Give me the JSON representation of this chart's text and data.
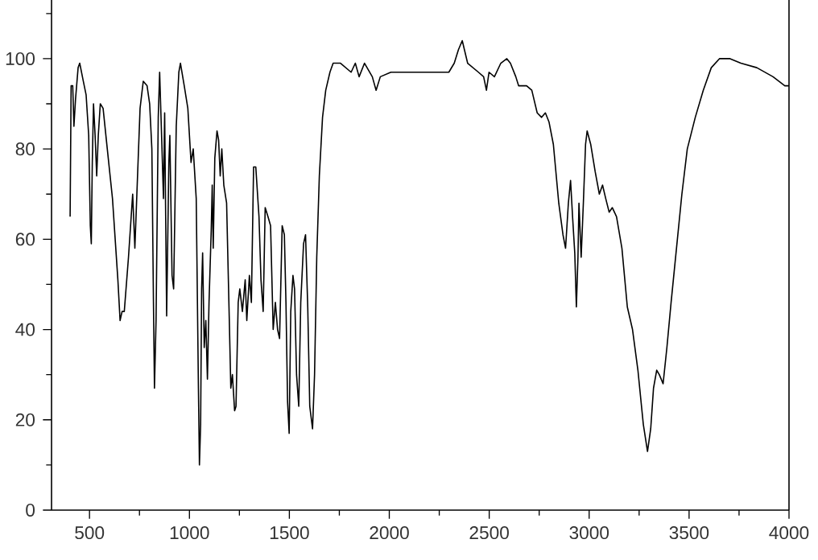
{
  "chart_data": {
    "type": "line",
    "x": [
      403,
      408,
      416,
      422,
      430,
      443,
      451,
      469,
      483,
      496,
      504,
      509,
      514,
      520,
      528,
      536,
      544,
      554,
      568,
      589,
      615,
      642,
      653,
      663,
      674,
      695,
      716,
      727,
      737,
      753,
      769,
      788,
      801,
      812,
      820,
      825,
      833,
      844,
      851,
      862,
      870,
      876,
      886,
      897,
      902,
      913,
      921,
      934,
      947,
      955,
      974,
      992,
      1008,
      1019,
      1034,
      1045,
      1050,
      1056,
      1061,
      1066,
      1074,
      1082,
      1090,
      1098,
      1109,
      1114,
      1119,
      1127,
      1138,
      1146,
      1154,
      1162,
      1172,
      1186,
      1199,
      1207,
      1215,
      1226,
      1233,
      1244,
      1252,
      1265,
      1279,
      1287,
      1300,
      1310,
      1321,
      1332,
      1348,
      1358,
      1369,
      1379,
      1393,
      1406,
      1419,
      1430,
      1441,
      1451,
      1464,
      1475,
      1483,
      1491,
      1499,
      1507,
      1518,
      1526,
      1536,
      1547,
      1557,
      1571,
      1581,
      1592,
      1602,
      1616,
      1626,
      1637,
      1650,
      1666,
      1682,
      1703,
      1719,
      1756,
      1809,
      1830,
      1849,
      1876,
      1915,
      1934,
      1955,
      2008,
      2075,
      2151,
      2258,
      2298,
      2325,
      2346,
      2365,
      2392,
      2446,
      2472,
      2486,
      2499,
      2526,
      2558,
      2588,
      2606,
      2633,
      2647,
      2687,
      2713,
      2740,
      2762,
      2781,
      2799,
      2821,
      2848,
      2869,
      2882,
      2896,
      2907,
      2917,
      2928,
      2936,
      2944,
      2949,
      2960,
      2971,
      2982,
      2990,
      3008,
      3030,
      3051,
      3067,
      3083,
      3100,
      3116,
      3137,
      3164,
      3191,
      3217,
      3244,
      3271,
      3292,
      3308,
      3322,
      3338,
      3351,
      3370,
      3389,
      3410,
      3437,
      3464,
      3491,
      3531,
      3571,
      3611,
      3652,
      3705,
      3759,
      3839,
      3920,
      3979,
      4000
    ],
    "series": [
      {
        "color": "#000000",
        "values": [
          65,
          94,
          94,
          85,
          91,
          98,
          99,
          95,
          92,
          83,
          63,
          59,
          77,
          90,
          83,
          74,
          83,
          90,
          89,
          80,
          69,
          51,
          42,
          44,
          44,
          56,
          70,
          58,
          70,
          89,
          95,
          94,
          90,
          80,
          46,
          27,
          42,
          87,
          97,
          81,
          69,
          88,
          43,
          77,
          83,
          52,
          49,
          85,
          97,
          99,
          94,
          89,
          77,
          80,
          69,
          27,
          10,
          19,
          49,
          57,
          36,
          42,
          29,
          46,
          62,
          72,
          58,
          78,
          84,
          82,
          74,
          80,
          72,
          68,
          43,
          27,
          30,
          22,
          23,
          46,
          49,
          44,
          51,
          42,
          52,
          46,
          76,
          76,
          65,
          51,
          44,
          67,
          65,
          63,
          40,
          46,
          40,
          38,
          63,
          61,
          46,
          24,
          17,
          44,
          52,
          49,
          30,
          23,
          46,
          59,
          61,
          45,
          23,
          18,
          30,
          56,
          74,
          87,
          93,
          97,
          99,
          99,
          97,
          99,
          96,
          99,
          96,
          93,
          96,
          97,
          97,
          97,
          97,
          97,
          99,
          102,
          104,
          99,
          97,
          96,
          93,
          97,
          96,
          99,
          100,
          99,
          96,
          94,
          94,
          93,
          88,
          87,
          88,
          86,
          81,
          68,
          61,
          58,
          68,
          73,
          65,
          57,
          45,
          56,
          68,
          56,
          68,
          81,
          84,
          81,
          75,
          70,
          72,
          69,
          66,
          67,
          65,
          58,
          45,
          40,
          31,
          19,
          13,
          18,
          27,
          31,
          30,
          28,
          36,
          46,
          58,
          70,
          80,
          87,
          93,
          98,
          100,
          100,
          99,
          98,
          96,
          94,
          94
        ]
      }
    ],
    "xlim": [
      310,
      4000
    ],
    "ylim": [
      0,
      113
    ],
    "xticks": [
      500,
      {
        "value": 750,
        "label": null
      },
      1000,
      {
        "value": 1250,
        "label": null
      },
      1500,
      {
        "value": 1750,
        "label": null
      },
      2000,
      {
        "value": 2250,
        "label": null
      },
      2500,
      {
        "value": 2750,
        "label": null
      },
      3000,
      {
        "value": 3250,
        "label": null
      },
      3500,
      {
        "value": 3750,
        "label": null
      },
      4000
    ],
    "yticks": [
      0,
      {
        "value": 10,
        "label": null
      },
      20,
      {
        "value": 30,
        "label": null
      },
      40,
      {
        "value": 50,
        "label": null
      },
      60,
      {
        "value": 70,
        "label": null
      },
      80,
      {
        "value": 90,
        "label": null
      },
      100,
      {
        "value": 110,
        "label": null
      }
    ],
    "marker": "none",
    "line_style": "solid",
    "grid": false
  }
}
